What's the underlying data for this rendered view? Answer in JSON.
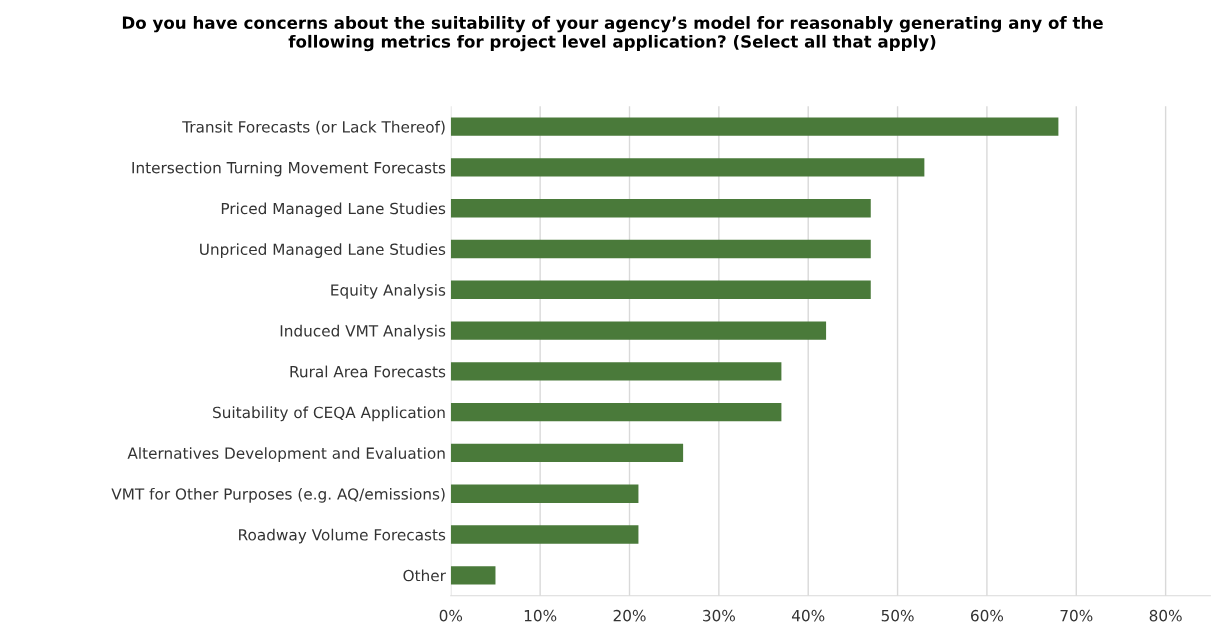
{
  "chart_data": {
    "type": "bar",
    "orientation": "horizontal",
    "title": "Do you have concerns about the suitability of your agency’s model for reasonably generating any of the\nfollowing metrics for project level application? (Select all that apply)",
    "categories": [
      "Transit Forecasts (or Lack Thereof)",
      "Intersection Turning Movement Forecasts",
      "Priced Managed Lane Studies",
      "Unpriced Managed Lane Studies",
      "Equity Analysis",
      "Induced VMT Analysis",
      "Rural Area Forecasts",
      "Suitability of CEQA Application",
      "Alternatives Development and Evaluation",
      "VMT for Other Purposes (e.g. AQ/emissions)",
      "Roadway Volume Forecasts",
      "Other"
    ],
    "values": [
      68,
      53,
      47,
      47,
      47,
      42,
      37,
      37,
      26,
      21,
      21,
      5
    ],
    "color": "#4a7a3a",
    "xlim": [
      0,
      85
    ],
    "xticks": [
      {
        "value": 0,
        "label": "0%"
      },
      {
        "value": 10,
        "label": "10%"
      },
      {
        "value": 20,
        "label": "20%"
      },
      {
        "value": 30,
        "label": "30%"
      },
      {
        "value": 40,
        "label": "40%"
      },
      {
        "value": 50,
        "label": "50%"
      },
      {
        "value": 60,
        "label": "60%"
      },
      {
        "value": 70,
        "label": "70%"
      },
      {
        "value": 80,
        "label": "80%"
      }
    ],
    "grid": "x"
  }
}
